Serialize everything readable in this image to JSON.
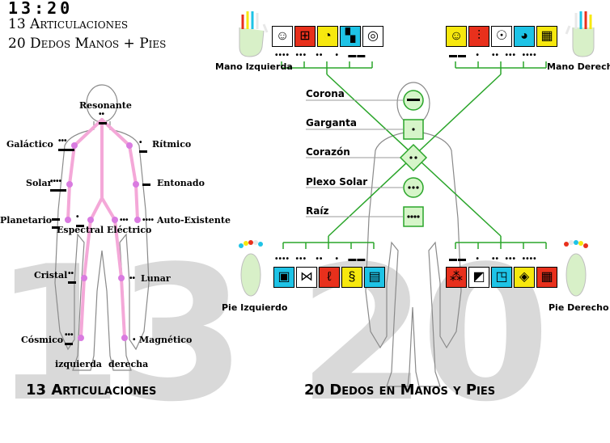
{
  "header": {
    "title": "13:20",
    "line1": "13 Articulaciones",
    "line2": "20 Dedos Manos + Pies"
  },
  "background": {
    "left_number": "13",
    "right_number": "20"
  },
  "left_panel": {
    "caption": "13 Articulaciones",
    "joints": {
      "resonante": "Resonante",
      "galactico": "Galáctico",
      "ritmico": "Rítmico",
      "solar": "Solar",
      "entonado": "Entonado",
      "planetario": "Planetario",
      "autoexistente": "Auto-Existente",
      "espectral": "Espectral",
      "electrico": "Eléctrico",
      "cristal": "Cristal",
      "lunar": "Lunar",
      "cosmico": "Cósmico",
      "magnetico": "Magnético",
      "izquierda": "izquierda",
      "derecha": "derecha"
    },
    "colors": {
      "skeleton": "#f4a8d8",
      "joint": "#d97be0"
    }
  },
  "right_panel": {
    "caption": "20 Dedos en Manos y Pies",
    "chakras": {
      "corona": "Corona",
      "garganta": "Garganta",
      "corazon": "Corazón",
      "plexo": "Plexo Solar",
      "raiz": "Raíz"
    },
    "limbs": {
      "mano_izq": "Mano Izquierda",
      "mano_der": "Mano Derecha",
      "pie_izq": "Pie Izquierdo",
      "pie_der": "Pie Derecho"
    },
    "glyph_colors": {
      "white": "#ffffff",
      "red": "#e8301c",
      "yellow": "#f7e80e",
      "blue": "#1ec3e6"
    },
    "hand_left_colors": [
      "white",
      "red",
      "yellow",
      "blue",
      "white"
    ],
    "hand_right_colors": [
      "yellow",
      "red",
      "white",
      "blue",
      "yellow"
    ],
    "foot_left_colors": [
      "blue",
      "white",
      "red",
      "yellow",
      "blue"
    ],
    "foot_right_colors": [
      "red",
      "white",
      "blue",
      "yellow",
      "red"
    ],
    "colors": {
      "chakra_fill": "#d6f5c9",
      "chakra_line": "#2aa52a",
      "body_outline": "#888888"
    }
  }
}
